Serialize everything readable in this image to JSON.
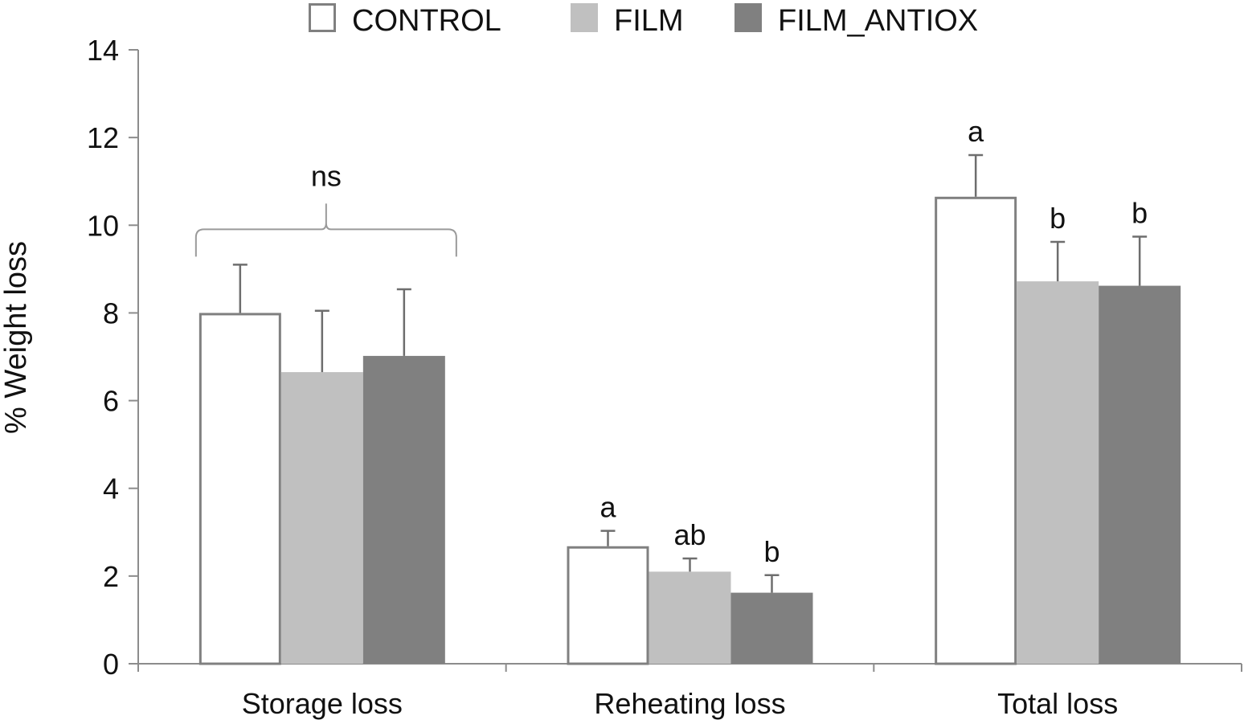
{
  "chart_data": {
    "type": "bar",
    "title": "",
    "xlabel": "",
    "ylabel": "% Weight loss",
    "ylim": [
      0,
      14
    ],
    "yticks": [
      0,
      2,
      4,
      6,
      8,
      10,
      12,
      14
    ],
    "grid": false,
    "legend_position": "top-center",
    "categories": [
      "Storage loss",
      "Reheating loss",
      "Total loss"
    ],
    "series": [
      {
        "name": "CONTROL",
        "color": "#ffffff",
        "stroke": "#808080",
        "values": [
          8.0,
          2.68,
          10.65
        ],
        "errors": [
          1.1,
          0.35,
          0.95
        ]
      },
      {
        "name": "FILM",
        "color": "#c0c0c0",
        "stroke": "#c0c0c0",
        "values": [
          6.65,
          2.1,
          8.72
        ],
        "errors": [
          1.4,
          0.3,
          0.9
        ]
      },
      {
        "name": "FILM_ANTIOX",
        "color": "#808080",
        "stroke": "#808080",
        "values": [
          7.02,
          1.62,
          8.62
        ],
        "errors": [
          1.52,
          0.4,
          1.12
        ]
      }
    ],
    "significance_letters": [
      [
        "",
        "",
        ""
      ],
      [
        "a",
        "ab",
        "b"
      ],
      [
        "a",
        "b",
        "b"
      ]
    ],
    "group_annotations": [
      {
        "category": "Storage loss",
        "text": "ns"
      }
    ]
  }
}
